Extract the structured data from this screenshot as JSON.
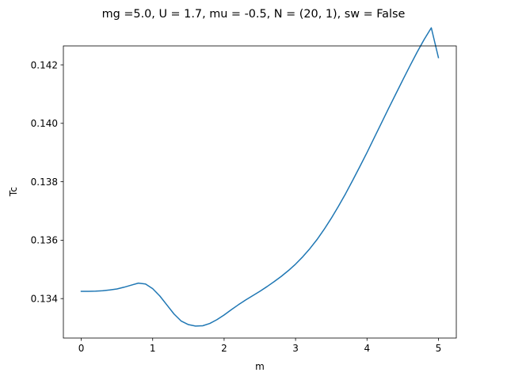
{
  "chart_data": {
    "type": "line",
    "title": "mg =5.0, U = 1.7, mu = -0.5, N = (20, 1), sw = False",
    "xlabel": "m",
    "ylabel": "Tc",
    "xlim": [
      -0.25,
      5.25
    ],
    "ylim": [
      0.13265,
      0.14265
    ],
    "x_ticks": [
      0,
      1,
      2,
      3,
      4,
      5
    ],
    "x_tick_labels": [
      "0",
      "1",
      "2",
      "3",
      "4",
      "5"
    ],
    "y_ticks": [
      0.134,
      0.136,
      0.138,
      0.14,
      0.142
    ],
    "y_tick_labels": [
      "0.134",
      "0.136",
      "0.138",
      "0.140",
      "0.142"
    ],
    "grid": false,
    "series": [
      {
        "color": "#1f77b4",
        "x": [
          0.0,
          0.1,
          0.2,
          0.3,
          0.4,
          0.5,
          0.6,
          0.7,
          0.8,
          0.9,
          1.0,
          1.1,
          1.2,
          1.3,
          1.4,
          1.5,
          1.6,
          1.7,
          1.8,
          1.9,
          2.0,
          2.1,
          2.2,
          2.3,
          2.4,
          2.5,
          2.6,
          2.7,
          2.8,
          2.9,
          3.0,
          3.1,
          3.2,
          3.3,
          3.4,
          3.5,
          3.6,
          3.7,
          3.8,
          3.9,
          4.0,
          4.1,
          4.2,
          4.3,
          4.4,
          4.5,
          4.6,
          4.7,
          4.8,
          4.9,
          5.0
        ],
        "y": [
          0.13425,
          0.13425,
          0.134255,
          0.13427,
          0.134295,
          0.13433,
          0.13439,
          0.13446,
          0.13453,
          0.1345,
          0.13434,
          0.13409,
          0.13378,
          0.13347,
          0.13323,
          0.13311,
          0.13306,
          0.13307,
          0.13315,
          0.13328,
          0.13344,
          0.13362,
          0.13379,
          0.13395,
          0.1341,
          0.13425,
          0.13441,
          0.13458,
          0.13476,
          0.13496,
          0.13518,
          0.13543,
          0.13571,
          0.13602,
          0.13637,
          0.13675,
          0.13716,
          0.13759,
          0.13805,
          0.13852,
          0.139,
          0.1395,
          0.14,
          0.1405,
          0.14099,
          0.14148,
          0.14196,
          0.14243,
          0.14287,
          0.14327,
          0.14225
        ]
      }
    ]
  }
}
